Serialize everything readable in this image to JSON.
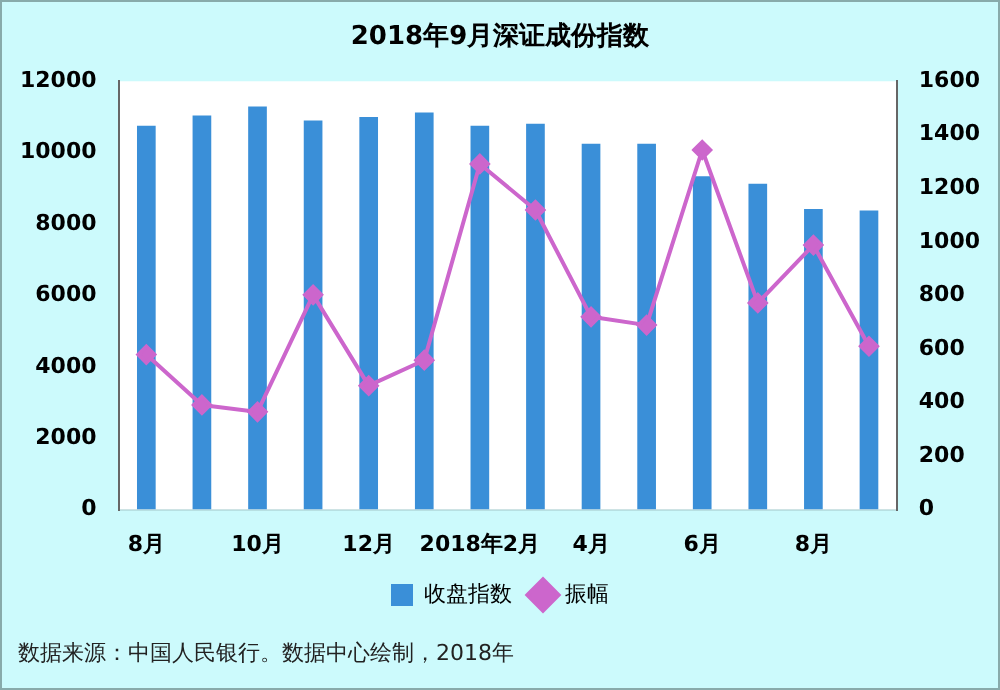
{
  "chart_data": {
    "type": "bar",
    "title": "2018年9月深证成份指数",
    "categories": [
      "8月",
      null,
      "10月",
      null,
      "12月",
      null,
      "2018年2月",
      null,
      "4月",
      null,
      "6月",
      null,
      "8月",
      null
    ],
    "series": [
      {
        "name": "收盘指数",
        "color": "#3a8fd8",
        "values": [
          10750,
          11040,
          11290,
          10900,
          11000,
          11120,
          10750,
          10810,
          10250,
          10250,
          9340,
          9130,
          8420,
          8380
        ]
      },
      {
        "name": "振幅",
        "type": "line",
        "axis": "y2",
        "color": "#cc66cc",
        "values": [
          579,
          391,
          365,
          802,
          463,
          558,
          1291,
          1119,
          720,
          689,
          1343,
          772,
          988,
          610
        ]
      }
    ],
    "ylim": [
      0,
      12000
    ],
    "yticks": [
      0,
      2000,
      4000,
      6000,
      8000,
      10000,
      12000
    ],
    "y2lim": [
      0,
      1600
    ],
    "y2ticks": [
      0,
      200,
      400,
      600,
      800,
      1000,
      1200,
      1400,
      1600
    ],
    "grid": false,
    "legend": "bottom",
    "marker": "diamond",
    "line_style": "solid",
    "annotations": [
      "数据来源：中国人民银行。数据中心绘制，2018年"
    ]
  }
}
